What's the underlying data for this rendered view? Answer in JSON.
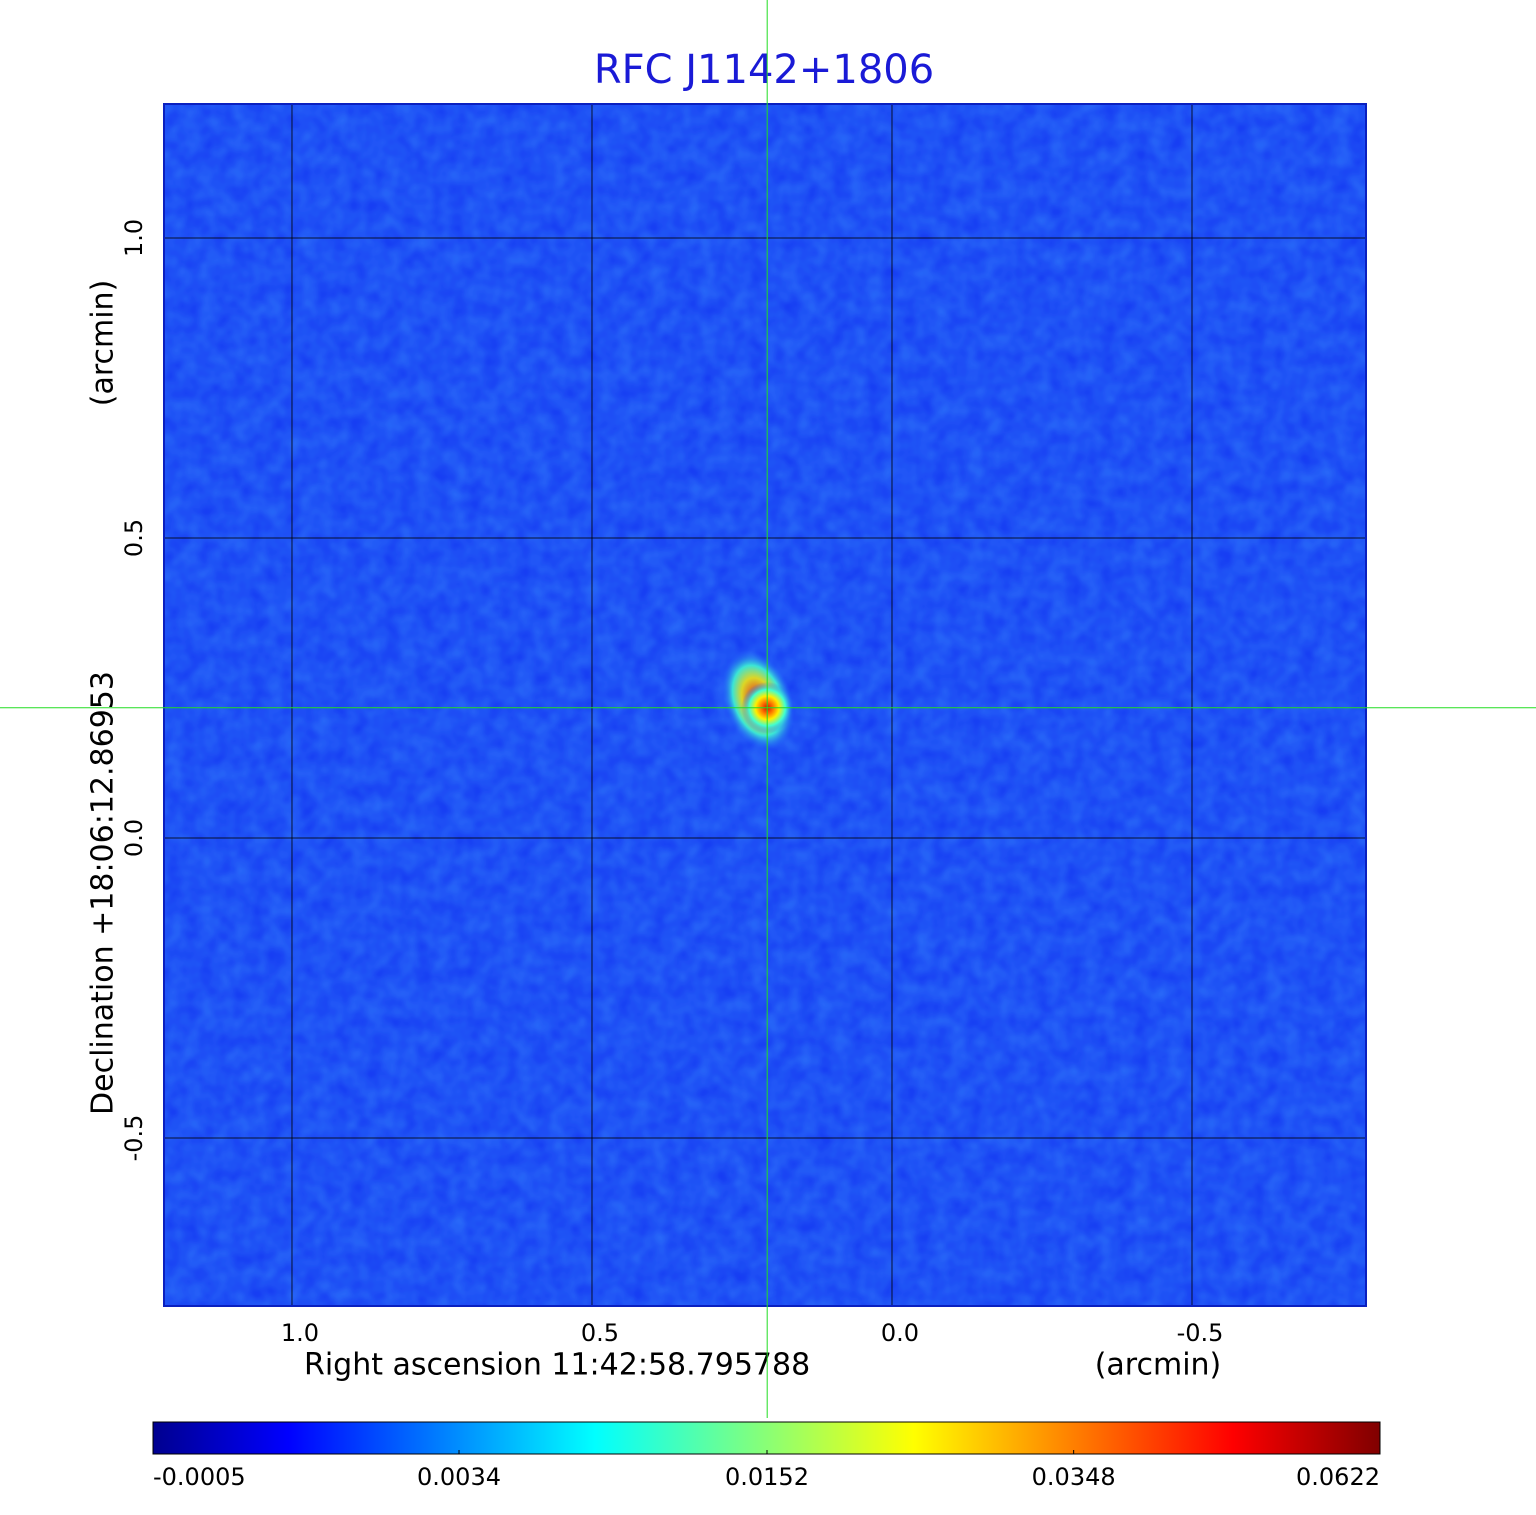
{
  "chart_data": {
    "type": "heatmap",
    "title": "RFC J1142+1806",
    "xlabel": "Right ascension  11:42:58.795788",
    "xunit": "(arcmin)",
    "ylabel": "Declination  +18:06:12.86953",
    "yunit": "(arcmin)",
    "xlim": [
      1.2133,
      -0.79
    ],
    "ylim": [
      -0.78,
      1.2233
    ],
    "xticks": [
      {
        "value": 1,
        "label": "1.0"
      },
      0.5,
      {
        "value": 0,
        "label": "0.0"
      },
      -0.5
    ],
    "yticks": [
      {
        "value": 1,
        "label": "1.0"
      },
      0.5,
      {
        "value": 0,
        "label": "0.0"
      },
      -0.5
    ],
    "grid": true,
    "crosshair": {
      "x": 0.208,
      "y": 0.217,
      "color": "#22dd22"
    },
    "colorbar": {
      "scale": "sqrt",
      "lim": [
        -0.0005,
        0.0622
      ],
      "ticks": [
        -0.0005,
        0.0034,
        0.0152,
        0.0348,
        0.0622
      ],
      "colormap": "jet"
    }
  }
}
